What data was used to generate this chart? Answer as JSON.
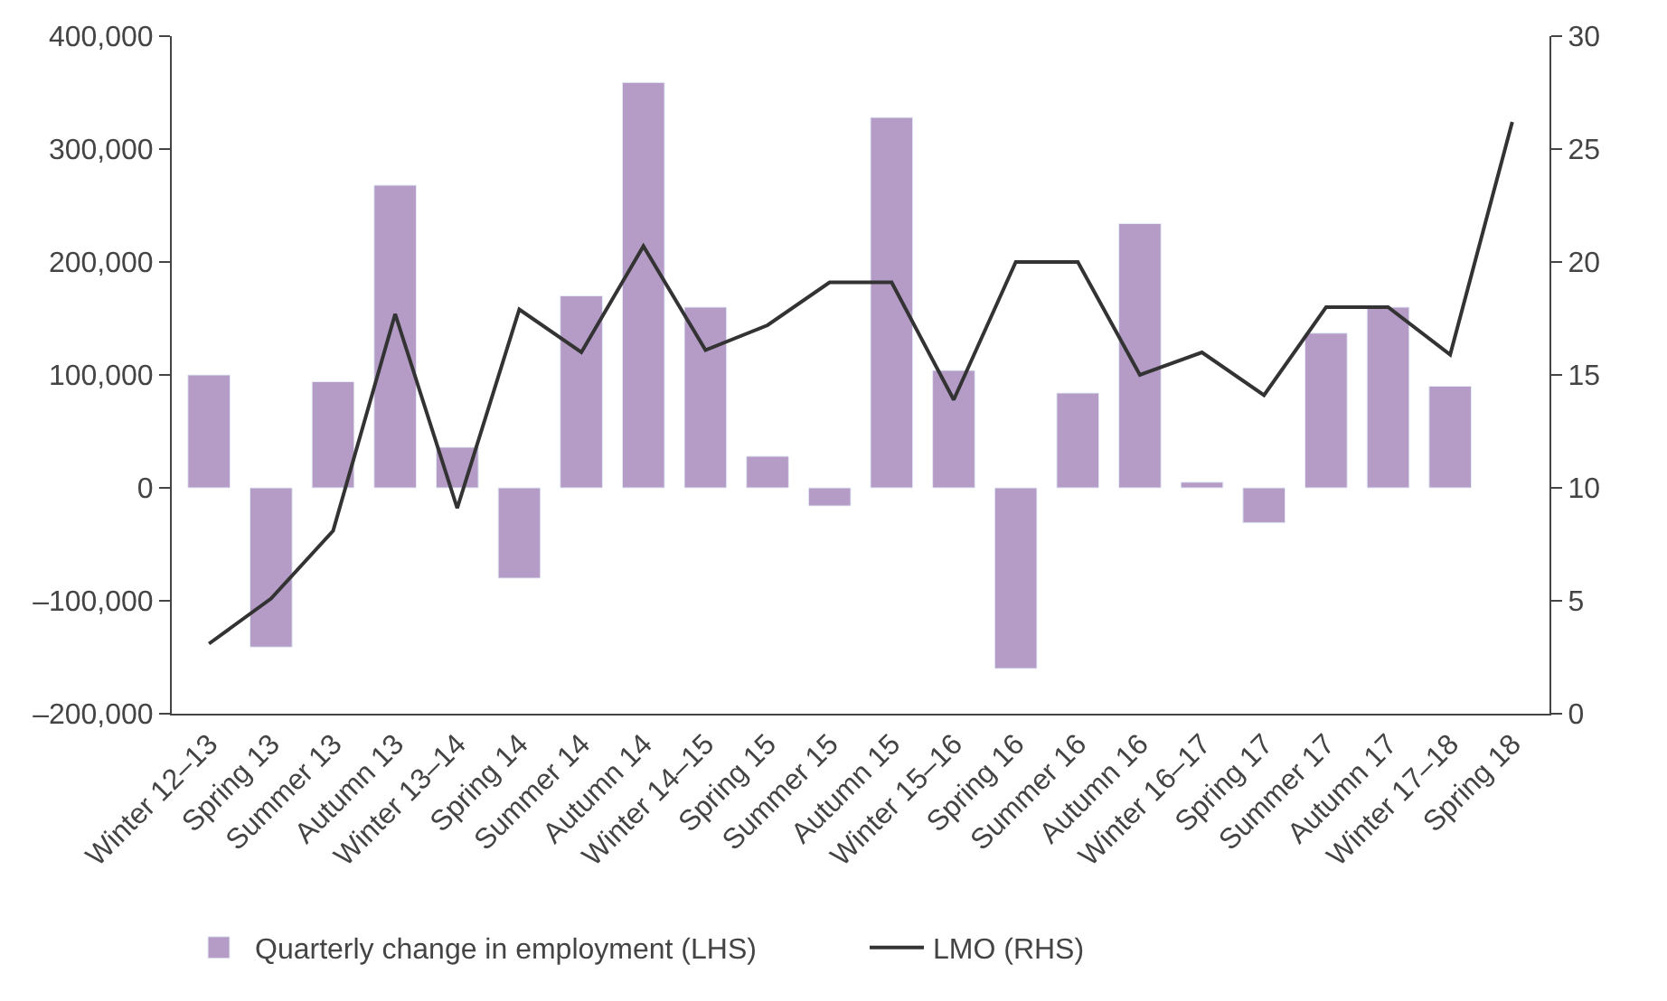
{
  "chart_data": {
    "type": "bar",
    "categories": [
      "Winter 12–13",
      "Spring 13",
      "Summer 13",
      "Autumn 13",
      "Winter 13–14",
      "Spring 14",
      "Summer 14",
      "Autumn 14",
      "Winter 14–15",
      "Spring 15",
      "Summer 15",
      "Autumn 15",
      "Winter 15–16",
      "Spring 16",
      "Summer 16",
      "Autumn 16",
      "Winter 16–17",
      "Spring 17",
      "Summer 17",
      "Autumn 17",
      "Winter 17–18",
      "Spring 18"
    ],
    "series": [
      {
        "name": "Quarterly change in employment (LHS)",
        "color": "#b49cc6",
        "values": [
          100000,
          -141000,
          94000,
          268000,
          36000,
          -80000,
          170000,
          359000,
          160000,
          28000,
          -16000,
          328000,
          104000,
          -160000,
          84000,
          234000,
          5000,
          -31000,
          137000,
          160000,
          90000,
          null
        ]
      },
      {
        "name": "LMO (RHS)",
        "type": "line",
        "axis": "y2",
        "color": "#333333",
        "values": [
          3.1,
          5.1,
          8.1,
          17.7,
          9.1,
          17.9,
          16.0,
          20.7,
          16.1,
          17.2,
          19.1,
          19.1,
          13.9,
          20.0,
          20.0,
          15.0,
          16.0,
          14.1,
          18.0,
          18.0,
          15.9,
          26.2
        ]
      }
    ],
    "ylim": [
      -200000,
      400000
    ],
    "yticks": [
      {
        "value": -200000,
        "label": "–200,000"
      },
      {
        "value": -100000,
        "label": "–100,000"
      },
      {
        "value": 0,
        "label": "0"
      },
      {
        "value": 100000,
        "label": "100,000"
      },
      {
        "value": 200000,
        "label": "200,000"
      },
      {
        "value": 300000,
        "label": "300,000"
      },
      {
        "value": 400000,
        "label": "400,000"
      }
    ],
    "y2lim": [
      0,
      30
    ],
    "y2ticks": [
      0,
      5,
      10,
      15,
      20,
      25,
      30
    ],
    "legend": "bottom",
    "marker": "none",
    "line_style": "solid"
  }
}
